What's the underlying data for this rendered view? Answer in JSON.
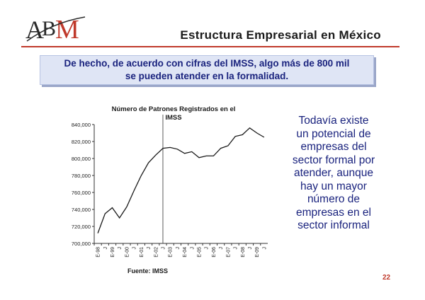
{
  "slide": {
    "logo_text": "ABM",
    "title": "Estructura Empresarial en México",
    "callout": [
      "De hecho, de acuerdo con cifras del IMSS, algo más de 800 mil",
      "se pueden atender en la formalidad."
    ],
    "side_text": [
      "Todavía existe",
      "un potencial de",
      "empresas del",
      "sector formal por",
      "atender, aunque",
      "hay un mayor",
      "número de",
      "empresas en el",
      "sector informal"
    ],
    "source": "Fuente: IMSS",
    "page_number": "22"
  },
  "colors": {
    "accent_red": "#c0392b",
    "text_blue": "#1a237e",
    "callout_bg": "#dfe5f5"
  },
  "chart_data": {
    "type": "line",
    "title": [
      "Número de Patrones Registrados en el",
      "IMSS"
    ],
    "xlabel": "",
    "ylabel": "",
    "ylim": [
      700000,
      840000
    ],
    "yticks": [
      "700,000",
      "720,000",
      "740,000",
      "760,000",
      "780,000",
      "800,000",
      "820,000",
      "840,000"
    ],
    "x": [
      "E-98",
      "J",
      "E-99",
      "J",
      "E-00",
      "J",
      "E-01",
      "J",
      "E-02",
      "J",
      "E-03",
      "J",
      "E-04",
      "J",
      "E-05",
      "J",
      "E-06",
      "J",
      "E-07",
      "J",
      "E-08",
      "J",
      "E-09",
      "J"
    ],
    "series": [
      {
        "values": [
          712000,
          735000,
          742000,
          730000,
          743000,
          762000,
          780000,
          795000,
          804000,
          812000,
          813000,
          811000,
          806000,
          808000,
          801000,
          803000,
          803000,
          812000,
          815000,
          826000,
          828000,
          836000,
          830000,
          825000
        ]
      }
    ],
    "vertical_marker_index": 9,
    "grid": false,
    "legend": "none"
  }
}
